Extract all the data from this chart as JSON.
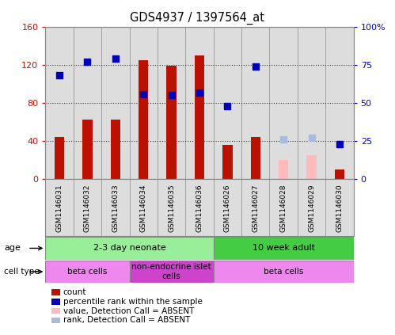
{
  "title": "GDS4937 / 1397564_at",
  "samples": [
    "GSM1146031",
    "GSM1146032",
    "GSM1146033",
    "GSM1146034",
    "GSM1146035",
    "GSM1146036",
    "GSM1146026",
    "GSM1146027",
    "GSM1146028",
    "GSM1146029",
    "GSM1146030"
  ],
  "count_values": [
    44,
    63,
    63,
    125,
    119,
    130,
    36,
    44,
    null,
    null,
    10
  ],
  "count_absent": [
    null,
    null,
    null,
    null,
    null,
    null,
    null,
    null,
    20,
    25,
    null
  ],
  "rank_values": [
    68,
    77,
    79,
    56,
    55,
    57,
    48,
    74,
    null,
    null,
    23
  ],
  "rank_absent": [
    null,
    null,
    null,
    null,
    null,
    null,
    null,
    null,
    26,
    27,
    null
  ],
  "ylim_left": [
    0,
    160
  ],
  "ylim_right": [
    0,
    100
  ],
  "yticks_left": [
    0,
    40,
    80,
    120,
    160
  ],
  "ytick_labels_left": [
    "0",
    "40",
    "80",
    "120",
    "160"
  ],
  "yticks_right": [
    0,
    25,
    50,
    75,
    100
  ],
  "ytick_labels_right": [
    "0",
    "25",
    "50",
    "75",
    "100%"
  ],
  "bar_color": "#bb1100",
  "bar_absent_color": "#ffbbbb",
  "rank_color": "#0000bb",
  "rank_absent_color": "#aabbdd",
  "dotted_line_color": "#444444",
  "age_groups": [
    {
      "label": "2-3 day neonate",
      "start": 0,
      "end": 6,
      "color": "#99ee99"
    },
    {
      "label": "10 week adult",
      "start": 6,
      "end": 11,
      "color": "#44cc44"
    }
  ],
  "cell_type_groups": [
    {
      "label": "beta cells",
      "start": 0,
      "end": 3,
      "color": "#ee88ee"
    },
    {
      "label": "non-endocrine islet\ncells",
      "start": 3,
      "end": 6,
      "color": "#cc44cc"
    },
    {
      "label": "beta cells",
      "start": 6,
      "end": 11,
      "color": "#ee88ee"
    }
  ],
  "legend_items": [
    {
      "label": "count",
      "color": "#bb1100"
    },
    {
      "label": "percentile rank within the sample",
      "color": "#0000bb"
    },
    {
      "label": "value, Detection Call = ABSENT",
      "color": "#ffbbbb"
    },
    {
      "label": "rank, Detection Call = ABSENT",
      "color": "#aabbdd"
    }
  ],
  "bg_color": "#ffffff",
  "plot_bg_color": "#dddddd",
  "bar_width": 0.35,
  "rank_marker_size": 40,
  "grid_color": "#000000",
  "spine_color": "#888888"
}
